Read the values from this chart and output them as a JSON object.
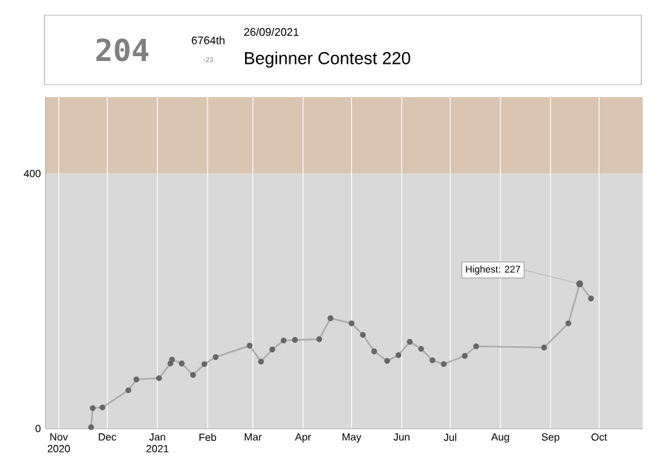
{
  "chart_data": {
    "type": "line",
    "title": "Beginner Contest 220",
    "subtitle": "26/09/2021",
    "annotations": [
      "204",
      "6764th",
      "-23",
      {
        "text": "Highest: 227",
        "x": "2021-09-19",
        "y": 227
      }
    ],
    "x": [
      "2020-11-21",
      "2020-11-22",
      "2020-11-28",
      "2020-12-14",
      "2020-12-19",
      "2021-01-02",
      "2021-01-09",
      "2021-01-10",
      "2021-01-16",
      "2021-01-23",
      "2021-01-30",
      "2021-02-06",
      "2021-02-27",
      "2021-03-06",
      "2021-03-13",
      "2021-03-20",
      "2021-03-27",
      "2021-04-11",
      "2021-04-18",
      "2021-05-01",
      "2021-05-08",
      "2021-05-15",
      "2021-05-23",
      "2021-05-30",
      "2021-06-06",
      "2021-06-13",
      "2021-06-20",
      "2021-06-27",
      "2021-07-10",
      "2021-07-17",
      "2021-08-28",
      "2021-09-12",
      "2021-09-19",
      "2021-09-26"
    ],
    "series": [
      {
        "color": "#acacac",
        "values": [
          2,
          32,
          33,
          60,
          77,
          79,
          102,
          108,
          102,
          84,
          101,
          112,
          130,
          105,
          124,
          138,
          139,
          140,
          173,
          165,
          147,
          121,
          106,
          115,
          136,
          125,
          107,
          101,
          114,
          129,
          127,
          165,
          227,
          204
        ]
      }
    ],
    "xlim": [
      "2020-10-24",
      "2021-10-28"
    ],
    "xticks": [
      {
        "value": "2020-11-01",
        "label": "Nov 2020"
      },
      {
        "value": "2020-12-01",
        "label": "Dec"
      },
      {
        "value": "2021-01-01",
        "label": "Jan 2021"
      },
      {
        "value": "2021-02-01",
        "label": "Feb"
      },
      {
        "value": "2021-03-01",
        "label": "Mar"
      },
      {
        "value": "2021-04-01",
        "label": "Apr"
      },
      {
        "value": "2021-05-01",
        "label": "May"
      },
      {
        "value": "2021-06-01",
        "label": "Jun"
      },
      {
        "value": "2021-07-01",
        "label": "Jul"
      },
      {
        "value": "2021-08-01",
        "label": "Aug"
      },
      {
        "value": "2021-09-01",
        "label": "Sep"
      },
      {
        "value": "2021-10-01",
        "label": "Oct"
      }
    ],
    "ylim": [
      0,
      520
    ],
    "yticks": [
      0,
      400
    ],
    "bands": [
      {
        "axis": "y",
        "from": 0,
        "to": 400,
        "color": "#d9d9d9"
      },
      {
        "axis": "y",
        "from": 400,
        "to": 520,
        "color": "#d9c5b2"
      }
    ],
    "grid": "x",
    "marker": "circle",
    "line_style": "solid"
  }
}
